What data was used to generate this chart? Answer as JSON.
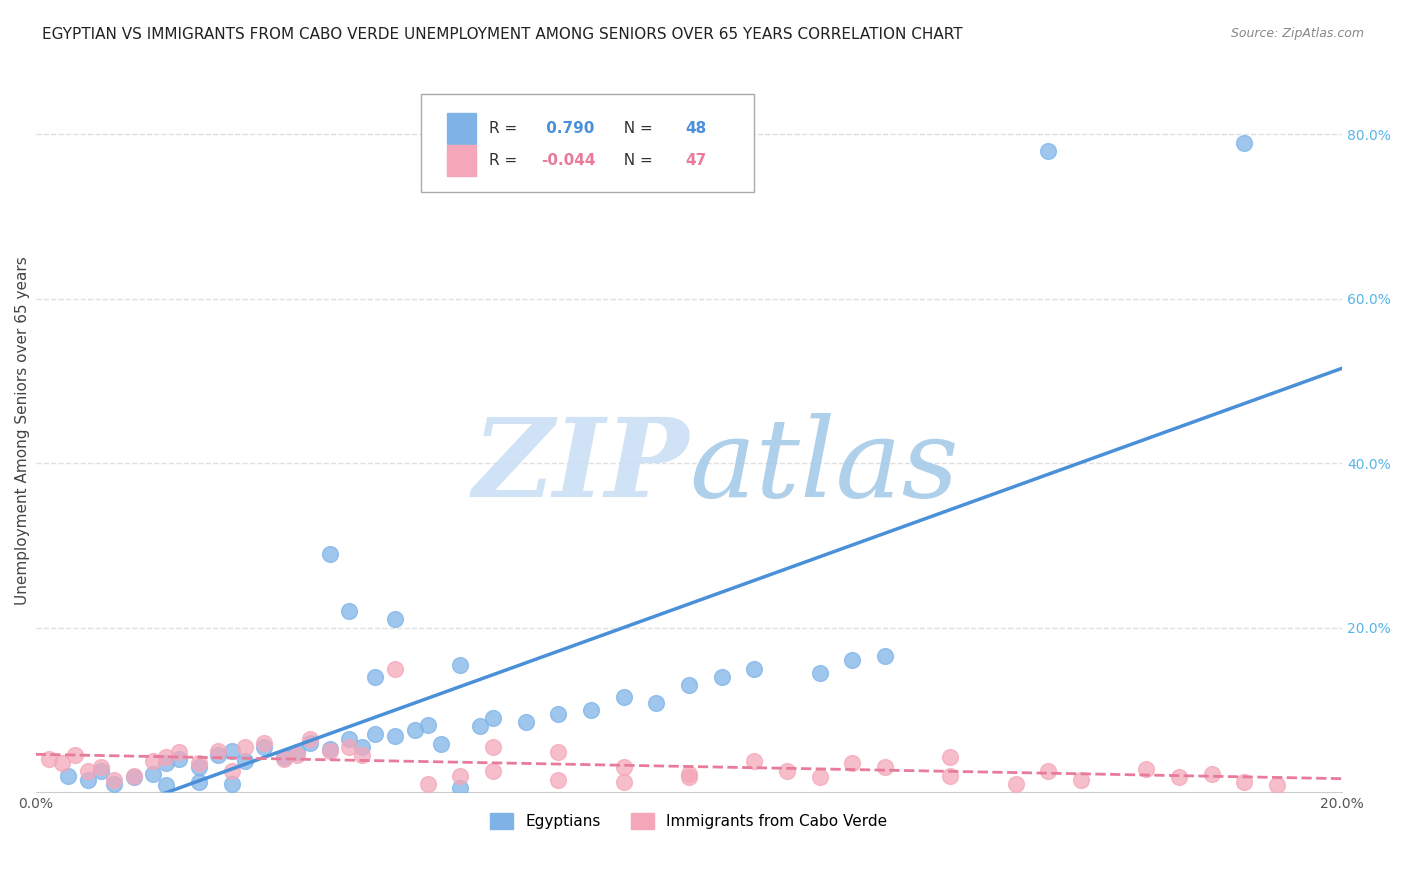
{
  "title": "EGYPTIAN VS IMMIGRANTS FROM CABO VERDE UNEMPLOYMENT AMONG SENIORS OVER 65 YEARS CORRELATION CHART",
  "source": "Source: ZipAtlas.com",
  "ylabel": "Unemployment Among Seniors over 65 years",
  "xlim": [
    0.0,
    0.2
  ],
  "ylim": [
    0.0,
    0.88
  ],
  "yticks_right": [
    0.2,
    0.4,
    0.6,
    0.8
  ],
  "blue_R": 0.79,
  "blue_N": 48,
  "pink_R": -0.044,
  "pink_N": 47,
  "blue_color": "#7fb3e8",
  "pink_color": "#f4a7b9",
  "blue_line_color": "#4a90d9",
  "pink_line_color": "#e87a9a",
  "watermark_zip": "ZIP",
  "watermark_atlas": "atlas",
  "watermark_color_zip": "#c8dff5",
  "watermark_color_atlas": "#a0c8e8",
  "legend_label_blue": "Egyptians",
  "legend_label_pink": "Immigrants from Cabo Verde",
  "blue_x": [
    0.005,
    0.008,
    0.01,
    0.012,
    0.015,
    0.018,
    0.02,
    0.022,
    0.025,
    0.028,
    0.03,
    0.032,
    0.035,
    0.038,
    0.04,
    0.042,
    0.045,
    0.048,
    0.05,
    0.052,
    0.055,
    0.058,
    0.06,
    0.062,
    0.065,
    0.068,
    0.07,
    0.075,
    0.08,
    0.085,
    0.09,
    0.095,
    0.1,
    0.105,
    0.11,
    0.12,
    0.125,
    0.13,
    0.045,
    0.055,
    0.065,
    0.048,
    0.052,
    0.03,
    0.025,
    0.02,
    0.155,
    0.185
  ],
  "blue_y": [
    0.02,
    0.015,
    0.025,
    0.01,
    0.018,
    0.022,
    0.035,
    0.04,
    0.03,
    0.045,
    0.05,
    0.038,
    0.055,
    0.042,
    0.048,
    0.06,
    0.052,
    0.065,
    0.055,
    0.07,
    0.068,
    0.075,
    0.082,
    0.058,
    0.005,
    0.08,
    0.09,
    0.085,
    0.095,
    0.1,
    0.115,
    0.108,
    0.13,
    0.14,
    0.15,
    0.145,
    0.16,
    0.165,
    0.29,
    0.21,
    0.155,
    0.22,
    0.14,
    0.01,
    0.012,
    0.008,
    0.78,
    0.79
  ],
  "pink_x": [
    0.002,
    0.004,
    0.006,
    0.008,
    0.01,
    0.012,
    0.015,
    0.018,
    0.02,
    0.022,
    0.025,
    0.028,
    0.03,
    0.032,
    0.035,
    0.038,
    0.04,
    0.042,
    0.045,
    0.048,
    0.05,
    0.055,
    0.06,
    0.065,
    0.07,
    0.08,
    0.09,
    0.1,
    0.115,
    0.125,
    0.14,
    0.07,
    0.08,
    0.09,
    0.1,
    0.11,
    0.12,
    0.13,
    0.14,
    0.15,
    0.155,
    0.16,
    0.17,
    0.175,
    0.18,
    0.185,
    0.19
  ],
  "pink_y": [
    0.04,
    0.035,
    0.045,
    0.025,
    0.03,
    0.015,
    0.02,
    0.038,
    0.042,
    0.048,
    0.035,
    0.05,
    0.025,
    0.055,
    0.06,
    0.04,
    0.045,
    0.065,
    0.05,
    0.055,
    0.045,
    0.15,
    0.01,
    0.02,
    0.025,
    0.015,
    0.03,
    0.018,
    0.025,
    0.035,
    0.02,
    0.055,
    0.048,
    0.012,
    0.022,
    0.038,
    0.018,
    0.03,
    0.042,
    0.01,
    0.025,
    0.015,
    0.028,
    0.018,
    0.022,
    0.012,
    0.008
  ],
  "background_color": "#ffffff",
  "grid_color": "#e0e0e0",
  "title_fontsize": 11,
  "axis_label_fontsize": 11,
  "tick_fontsize": 10
}
